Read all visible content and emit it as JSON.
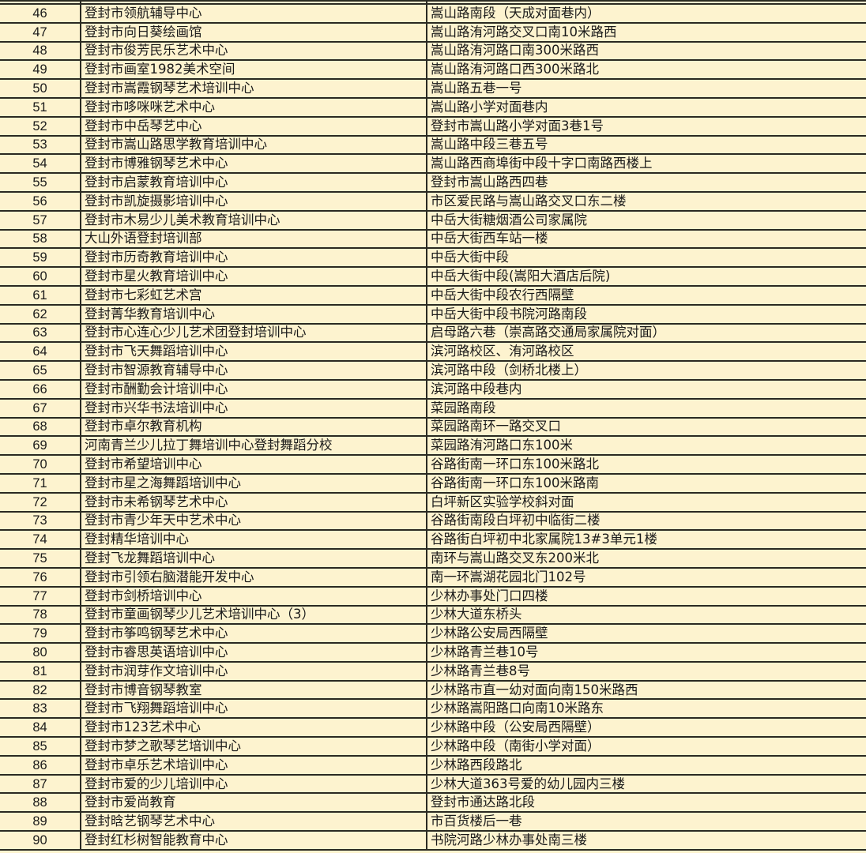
{
  "table": {
    "rows": [
      {
        "no": "46",
        "name": "登封市领航辅导中心",
        "address": "嵩山路南段（天成对面巷内）"
      },
      {
        "no": "47",
        "name": "登封市向日葵绘画馆",
        "address": "嵩山路洧河路交叉口南10米路西"
      },
      {
        "no": "48",
        "name": "登封市俊芳民乐艺术中心",
        "address": "嵩山路洧河路口南300米路西"
      },
      {
        "no": "49",
        "name": "登封市画室1982美术空间",
        "address": "嵩山路洧河路口西300米路北"
      },
      {
        "no": "50",
        "name": "登封市嵩霞钢琴艺术培训中心",
        "address": "嵩山路五巷一号"
      },
      {
        "no": "51",
        "name": "登封市哆咪咪艺术中心",
        "address": "嵩山路小学对面巷内"
      },
      {
        "no": "52",
        "name": "登封市中岳琴艺中心",
        "address": "登封市嵩山路小学对面3巷1号"
      },
      {
        "no": "53",
        "name": "登封市嵩山路思学教育培训中心",
        "address": "嵩山路中段三巷五号"
      },
      {
        "no": "54",
        "name": "登封市博雅钢琴艺术中心",
        "address": "嵩山路西商埠街中段十字口南路西楼上"
      },
      {
        "no": "55",
        "name": "登封市启蒙教育培训中心",
        "address": "登封市嵩山路西四巷"
      },
      {
        "no": "56",
        "name": "登封市凯旋摄影培训中心",
        "address": "市区爱民路与嵩山路交叉口东二楼"
      },
      {
        "no": "57",
        "name": "登封市木易少儿美术教育培训中心",
        "address": "中岳大街糖烟酒公司家属院"
      },
      {
        "no": "58",
        "name": "大山外语登封培训部",
        "address": "中岳大街西车站一楼"
      },
      {
        "no": "59",
        "name": "登封市历奇教育培训中心",
        "address": "中岳大街中段"
      },
      {
        "no": "60",
        "name": "登封市星火教育培训中心",
        "address": "中岳大街中段(嵩阳大酒店后院)"
      },
      {
        "no": "61",
        "name": "登封市七彩虹艺术宫",
        "address": "中岳大街中段农行西隔壁"
      },
      {
        "no": "62",
        "name": "登封菁华教育培训中心",
        "address": "中岳大街中段书院河路南段"
      },
      {
        "no": "63",
        "name": "登封市心连心少儿艺术团登封培训中心",
        "address": "启母路六巷（崇高路交通局家属院对面）"
      },
      {
        "no": "64",
        "name": "登封市飞天舞蹈培训中心",
        "address": "滨河路校区、洧河路校区"
      },
      {
        "no": "65",
        "name": "登封市智源教育辅导中心",
        "address": "滨河路中段（剑桥北楼上）"
      },
      {
        "no": "66",
        "name": "登封市酬勤会计培训中心",
        "address": "滨河路中段巷内"
      },
      {
        "no": "67",
        "name": "登封市兴华书法培训中心",
        "address": "菜园路南段"
      },
      {
        "no": "68",
        "name": "登封市卓尔教育机构",
        "address": "菜园路南环一路交叉口"
      },
      {
        "no": "69",
        "name": "河南青兰少儿拉丁舞培训中心登封舞蹈分校",
        "address": "菜园路洧河路口东100米"
      },
      {
        "no": "70",
        "name": "登封市希望培训中心",
        "address": "谷路街南一环口东100米路北"
      },
      {
        "no": "71",
        "name": "登封市星之海舞蹈培训中心",
        "address": "谷路街南一环口东100米路南"
      },
      {
        "no": "72",
        "name": "登封市未希钢琴艺术中心",
        "address": "白坪新区实验学校斜对面"
      },
      {
        "no": "73",
        "name": "登封市青少年天中艺术中心",
        "address": "谷路街南段白坪初中临街二楼"
      },
      {
        "no": "74",
        "name": "登封精华培训中心",
        "address": "谷路街白坪初中北家属院13#3单元1楼"
      },
      {
        "no": "75",
        "name": "登封飞龙舞蹈培训中心",
        "address": "南环与嵩山路交叉东200米北"
      },
      {
        "no": "76",
        "name": "登封市引领右脑潜能开发中心",
        "address": "南一环嵩湖花园北门102号"
      },
      {
        "no": "77",
        "name": "登封市剑桥培训中心",
        "address": "少林办事处门口四楼"
      },
      {
        "no": "78",
        "name": "登封市童画钢琴少儿艺术培训中心（3）",
        "address": "少林大道东桥头"
      },
      {
        "no": "79",
        "name": "登封市筝鸣钢琴艺术中心",
        "address": "少林路公安局西隔壁"
      },
      {
        "no": "80",
        "name": "登封市睿思英语培训中心",
        "address": "少林路青兰巷10号"
      },
      {
        "no": "81",
        "name": "登封市润芽作文培训中心",
        "address": "少林路青兰巷8号"
      },
      {
        "no": "82",
        "name": "登封市博音钢琴教室",
        "address": "少林路市直一幼对面向南150米路西"
      },
      {
        "no": "83",
        "name": "登封市飞翔舞蹈培训中心",
        "address": "少林路嵩阳路口向南10米路东"
      },
      {
        "no": "84",
        "name": "登封市123艺术中心",
        "address": "少林路中段（公安局西隔壁）"
      },
      {
        "no": "85",
        "name": "登封市梦之歌琴艺培训中心",
        "address": "少林路中段（南街小学对面）"
      },
      {
        "no": "86",
        "name": "登封市卓乐艺术培训中心",
        "address": "少林路西段路北"
      },
      {
        "no": "87",
        "name": "登封市爱的少儿培训中心",
        "address": "少林大道363号爱的幼儿园内三楼"
      },
      {
        "no": "88",
        "name": "登封市爱尚教育",
        "address": "登封市通达路北段"
      },
      {
        "no": "89",
        "name": "登封晗艺钢琴艺术中心",
        "address": "市百货楼后一巷"
      },
      {
        "no": "90",
        "name": "登封红杉树智能教育中心",
        "address": "书院河路少林办事处南三楼"
      }
    ]
  },
  "colors": {
    "background": "#fdf3cf",
    "grid": "#2a2a22",
    "text": "#1a1a1a"
  }
}
